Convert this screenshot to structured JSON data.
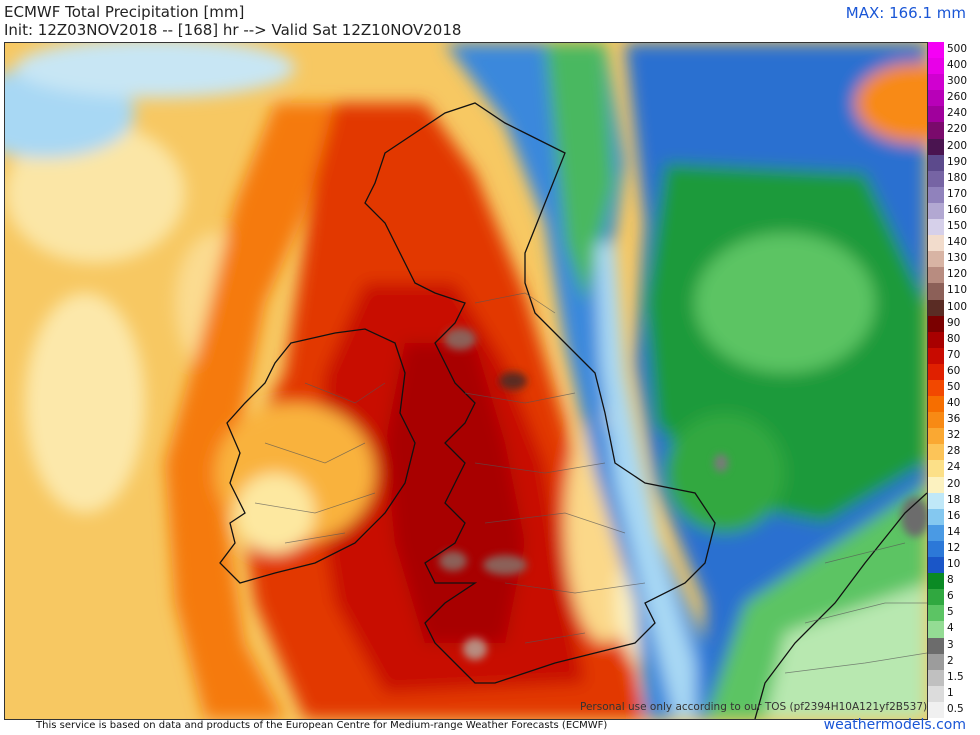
{
  "header": {
    "title": "ECMWF Total Precipitation [mm]",
    "subtitle": "Init: 12Z03NOV2018 -- [168] hr --> Valid Sat 12Z10NOV2018",
    "max": "MAX: 166.1 mm"
  },
  "colorbar": {
    "levels": [
      {
        "label": "500",
        "color": "#f500f5"
      },
      {
        "label": "400",
        "color": "#e800e8"
      },
      {
        "label": "300",
        "color": "#d000d0"
      },
      {
        "label": "260",
        "color": "#b800b8"
      },
      {
        "label": "240",
        "color": "#a0009c"
      },
      {
        "label": "220",
        "color": "#7a0a6c"
      },
      {
        "label": "200",
        "color": "#4a1450"
      },
      {
        "label": "190",
        "color": "#5c4a8c"
      },
      {
        "label": "180",
        "color": "#7664a4"
      },
      {
        "label": "170",
        "color": "#9082bc"
      },
      {
        "label": "160",
        "color": "#b2a8d2"
      },
      {
        "label": "150",
        "color": "#d6d0ea"
      },
      {
        "label": "140",
        "color": "#f2dccc"
      },
      {
        "label": "130",
        "color": "#d8b4a4"
      },
      {
        "label": "120",
        "color": "#b88c80"
      },
      {
        "label": "110",
        "color": "#8c6058"
      },
      {
        "label": "100",
        "color": "#5a2c24"
      },
      {
        "label": "90",
        "color": "#7a0000"
      },
      {
        "label": "80",
        "color": "#a80000"
      },
      {
        "label": "70",
        "color": "#c80a00"
      },
      {
        "label": "60",
        "color": "#e02000"
      },
      {
        "label": "50",
        "color": "#f24800"
      },
      {
        "label": "40",
        "color": "#f66e00"
      },
      {
        "label": "36",
        "color": "#f88a14"
      },
      {
        "label": "32",
        "color": "#faa832"
      },
      {
        "label": "28",
        "color": "#fcc458"
      },
      {
        "label": "24",
        "color": "#fce088"
      },
      {
        "label": "20",
        "color": "#fcf2c0"
      },
      {
        "label": "18",
        "color": "#c0e8f8"
      },
      {
        "label": "16",
        "color": "#84c8f0"
      },
      {
        "label": "14",
        "color": "#4a9ae4"
      },
      {
        "label": "12",
        "color": "#2c78d8"
      },
      {
        "label": "10",
        "color": "#1a56c8"
      },
      {
        "label": "8",
        "color": "#0a8a24"
      },
      {
        "label": "6",
        "color": "#30a840"
      },
      {
        "label": "5",
        "color": "#5cc464"
      },
      {
        "label": "4",
        "color": "#94dc94"
      },
      {
        "label": "3",
        "color": "#6c6c6c"
      },
      {
        "label": "2",
        "color": "#9c9c9c"
      },
      {
        "label": "1.5",
        "color": "#c0c0c0"
      },
      {
        "label": "1",
        "color": "#dcdcdc"
      },
      {
        "label": "0.5",
        "color": "#f0f0f0"
      }
    ]
  },
  "footer": {
    "source": "This service is based on data and products of the European Centre for Medium-range Weather Forecasts (ECMWF)",
    "watermark": "weathermodels.com",
    "tos": "Personal use only according to our TOS (pf2394H10A121yf2B537)"
  }
}
